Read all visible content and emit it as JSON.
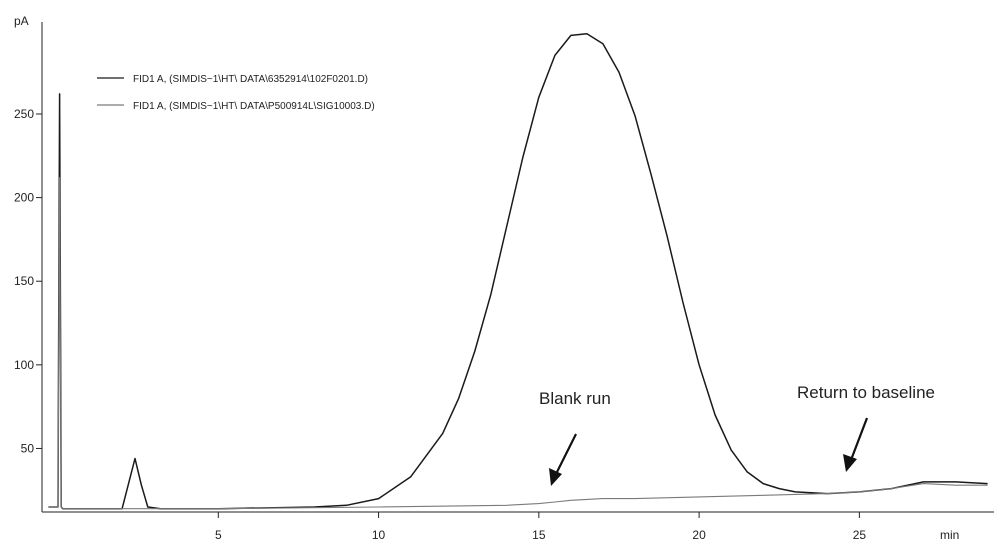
{
  "chart_data": {
    "type": "line",
    "title": "",
    "xlabel": "min",
    "ylabel": "pA",
    "xlim": [
      -0.5,
      29.2
    ],
    "ylim": [
      12,
      305
    ],
    "x_ticks": [
      5,
      10,
      15,
      20,
      25
    ],
    "y_ticks": [
      50,
      100,
      150,
      200,
      250
    ],
    "grid": false,
    "legend_position": "top-left",
    "series": [
      {
        "name": "FID1 A, (SIMDIS~1\\HT\\ DATA\\6352914\\102F0201.D)",
        "color": "#1a1a1a",
        "x": [
          -0.3,
          0,
          0.05,
          0.1,
          0.15,
          0.3,
          1,
          2,
          2.4,
          2.6,
          2.8,
          3.2,
          5,
          8,
          9,
          10,
          11,
          12,
          12.5,
          13,
          13.5,
          14,
          14.5,
          15,
          15.5,
          16,
          16.5,
          17,
          17.5,
          18,
          18.5,
          19,
          19.5,
          20,
          20.5,
          21,
          21.5,
          22,
          22.5,
          23,
          24,
          25,
          26,
          27,
          28,
          29
        ],
        "y": [
          15,
          15,
          262,
          15,
          14,
          14,
          14,
          14,
          44,
          28,
          15,
          14,
          14,
          15,
          16,
          20,
          33,
          59,
          80,
          108,
          142,
          183,
          224,
          260,
          285,
          297,
          298,
          292,
          275,
          249,
          214,
          177,
          137,
          100,
          70,
          49,
          36,
          29,
          26,
          24,
          23,
          24,
          26,
          30,
          30,
          29
        ]
      },
      {
        "name": "FID1 A, (SIMDIS~1\\HT\\ DATA\\P500914L\\SIG10003.D)",
        "color": "#7a7a7a",
        "x": [
          -0.3,
          0,
          0.05,
          0.1,
          0.15,
          0.3,
          2,
          5,
          10,
          14,
          15,
          15.5,
          16,
          17,
          18,
          20,
          22,
          24,
          25,
          26,
          27,
          28,
          29
        ],
        "y": [
          15,
          15,
          212,
          15,
          14,
          14,
          14,
          14,
          15,
          16,
          17,
          18,
          19,
          20,
          20,
          21,
          22,
          23,
          24,
          26,
          29,
          28,
          28
        ]
      }
    ],
    "annotations": [
      {
        "text": "Blank run",
        "x": 15.7,
        "y": 18
      },
      {
        "text": "Return to baseline",
        "x": 24.8,
        "y": 24
      }
    ]
  }
}
